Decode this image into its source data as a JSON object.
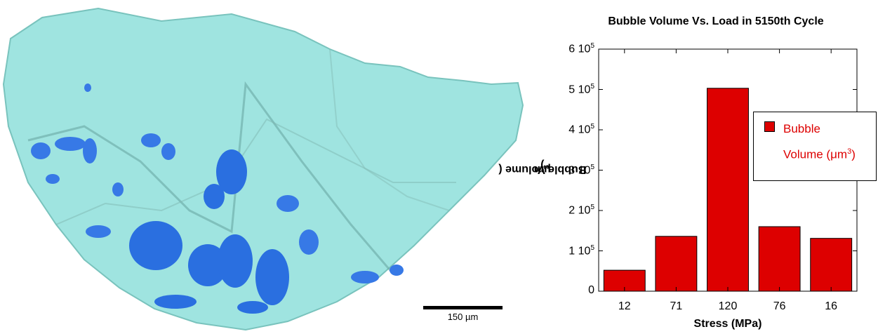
{
  "left_panel": {
    "scale_bar_label": "150 µm"
  },
  "chart_data": {
    "type": "bar",
    "title": "Bubble Volume Vs. Load in 5150th Cycle",
    "xlabel": "Stress (MPa)",
    "ylabel_base": "Bubble Volume (",
    "ylabel_unit": "μm",
    "ylabel_exp": "3",
    "ylabel_end": ")",
    "categories": [
      "12",
      "71",
      "120",
      "76",
      "16"
    ],
    "series": [
      {
        "name": "Bubble Volume (μm³)",
        "values": [
          52000,
          136000,
          503000,
          160000,
          131000
        ]
      }
    ],
    "ylim": [
      0,
      600000
    ],
    "yticks": [
      {
        "value": 0,
        "label": "0",
        "exp": ""
      },
      {
        "value": 100000,
        "label": "1 10",
        "exp": "5"
      },
      {
        "value": 200000,
        "label": "2 10",
        "exp": "5"
      },
      {
        "value": 300000,
        "label": "3 10",
        "exp": "5"
      },
      {
        "value": 400000,
        "label": "4 10",
        "exp": "5"
      },
      {
        "value": 500000,
        "label": "5 10",
        "exp": "5"
      },
      {
        "value": 600000,
        "label": "6 10",
        "exp": "5"
      }
    ],
    "bar_color": "#dd0000",
    "legend": {
      "line1": "Bubble",
      "line2_base": "Volume (",
      "line2_unit": "μm",
      "line2_exp": "3",
      "line2_end": ")"
    },
    "legend_position": "right",
    "grid": false
  }
}
